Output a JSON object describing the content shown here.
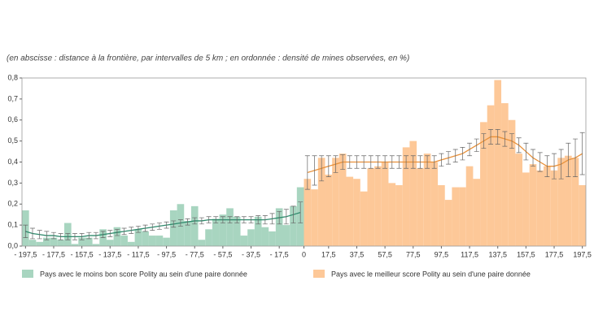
{
  "chart_data": {
    "type": "bar",
    "subtitle": "(en abscisse : distance à la frontière, par intervalles de 5 km ; en ordonnée : densité de mines observées, en %)",
    "xlim": [
      -200,
      200
    ],
    "ylim": [
      0,
      0.8
    ],
    "yticks": [
      {
        "value": 0,
        "label": "0,0"
      },
      {
        "value": 0.1,
        "label": "0,1"
      },
      {
        "value": 0.2,
        "label": "0,2"
      },
      {
        "value": 0.3,
        "label": "0,3"
      },
      {
        "value": 0.4,
        "label": "0,4"
      },
      {
        "value": 0.5,
        "label": "0,5"
      },
      {
        "value": 0.6,
        "label": "0,6"
      },
      {
        "value": 0.7,
        "label": "0,7"
      },
      {
        "value": 0.8,
        "label": "0,8"
      }
    ],
    "xticks": [
      {
        "value": -197.5,
        "label": "- 197,5"
      },
      {
        "value": -177.5,
        "label": "- 177,5"
      },
      {
        "value": -157.5,
        "label": "- 157,5"
      },
      {
        "value": -137.5,
        "label": "- 137,5"
      },
      {
        "value": -117.5,
        "label": "- 117,5"
      },
      {
        "value": -97.5,
        "label": "- 97,5"
      },
      {
        "value": -77.5,
        "label": "- 77,5"
      },
      {
        "value": -57.5,
        "label": "- 57,5"
      },
      {
        "value": -37.5,
        "label": "- 37,5"
      },
      {
        "value": -17.5,
        "label": "- 17,5"
      },
      0,
      {
        "value": 17.5,
        "label": "17,5"
      },
      {
        "value": 37.5,
        "label": "37,5"
      },
      {
        "value": 57.5,
        "label": "57,5"
      },
      {
        "value": 77.5,
        "label": "77,5"
      },
      {
        "value": 97.5,
        "label": "97,5"
      },
      {
        "value": 117.5,
        "label": "117,5"
      },
      {
        "value": 137.5,
        "label": "137,5"
      },
      {
        "value": 157.5,
        "label": "157,5"
      },
      {
        "value": 177.5,
        "label": "177,5"
      },
      {
        "value": 197.5,
        "label": "197,5"
      }
    ],
    "series": [
      {
        "name": "Pays avec le moins bon score Polity au sein d'une paire donnée",
        "color": "#a8d5c0",
        "line_color": "#2e8a6c",
        "x": [
          -197.5,
          -192.5,
          -187.5,
          -182.5,
          -177.5,
          -172.5,
          -167.5,
          -162.5,
          -157.5,
          -152.5,
          -147.5,
          -142.5,
          -137.5,
          -132.5,
          -127.5,
          -122.5,
          -117.5,
          -112.5,
          -107.5,
          -102.5,
          -97.5,
          -92.5,
          -87.5,
          -82.5,
          -77.5,
          -72.5,
          -67.5,
          -62.5,
          -57.5,
          -52.5,
          -47.5,
          -42.5,
          -37.5,
          -32.5,
          -27.5,
          -22.5,
          -17.5,
          -12.5,
          -7.5,
          -2.5
        ],
        "values": [
          0.17,
          0.03,
          0.02,
          0.04,
          0.04,
          0.03,
          0.11,
          0.01,
          0.04,
          0.04,
          0.01,
          0.08,
          0.03,
          0.09,
          0.05,
          0.02,
          0.08,
          0.07,
          0.05,
          0.05,
          0.04,
          0.17,
          0.2,
          0.12,
          0.19,
          0.03,
          0.08,
          0.13,
          0.15,
          0.18,
          0.14,
          0.05,
          0.08,
          0.14,
          0.09,
          0.07,
          0.18,
          0.1,
          0.19,
          0.28
        ],
        "fit": [
          0.07,
          0.06,
          0.055,
          0.05,
          0.05,
          0.045,
          0.045,
          0.045,
          0.045,
          0.05,
          0.05,
          0.055,
          0.06,
          0.065,
          0.07,
          0.075,
          0.08,
          0.085,
          0.09,
          0.095,
          0.1,
          0.105,
          0.11,
          0.115,
          0.12,
          0.12,
          0.125,
          0.125,
          0.125,
          0.125,
          0.125,
          0.125,
          0.125,
          0.125,
          0.125,
          0.13,
          0.135,
          0.14,
          0.15,
          0.16
        ],
        "fit_error": [
          0.03,
          0.025,
          0.02,
          0.02,
          0.015,
          0.015,
          0.015,
          0.015,
          0.015,
          0.015,
          0.015,
          0.015,
          0.015,
          0.015,
          0.015,
          0.015,
          0.015,
          0.015,
          0.015,
          0.015,
          0.015,
          0.015,
          0.015,
          0.015,
          0.015,
          0.015,
          0.015,
          0.015,
          0.015,
          0.015,
          0.015,
          0.015,
          0.015,
          0.02,
          0.02,
          0.025,
          0.03,
          0.035,
          0.04,
          0.05
        ]
      },
      {
        "name": "Pays avec le meilleur score Polity au sein d'une paire donnée",
        "color": "#fdc898",
        "line_color": "#e8913a",
        "x": [
          2.5,
          7.5,
          12.5,
          17.5,
          22.5,
          27.5,
          32.5,
          37.5,
          42.5,
          47.5,
          52.5,
          57.5,
          62.5,
          67.5,
          72.5,
          77.5,
          82.5,
          87.5,
          92.5,
          97.5,
          102.5,
          107.5,
          112.5,
          117.5,
          122.5,
          127.5,
          132.5,
          137.5,
          142.5,
          147.5,
          152.5,
          157.5,
          162.5,
          167.5,
          172.5,
          177.5,
          182.5,
          187.5,
          192.5,
          197.5
        ],
        "values": [
          0.32,
          0.27,
          0.42,
          0.34,
          0.42,
          0.44,
          0.33,
          0.32,
          0.26,
          0.37,
          0.38,
          0.4,
          0.3,
          0.29,
          0.47,
          0.5,
          0.37,
          0.44,
          0.4,
          0.29,
          0.22,
          0.28,
          0.28,
          0.38,
          0.32,
          0.59,
          0.67,
          0.79,
          0.68,
          0.6,
          0.44,
          0.35,
          0.39,
          0.36,
          0.38,
          0.36,
          0.42,
          0.43,
          0.42,
          0.29
        ],
        "fit": [
          0.35,
          0.36,
          0.37,
          0.38,
          0.39,
          0.4,
          0.4,
          0.4,
          0.4,
          0.4,
          0.4,
          0.4,
          0.4,
          0.4,
          0.4,
          0.4,
          0.4,
          0.4,
          0.4,
          0.41,
          0.42,
          0.43,
          0.44,
          0.46,
          0.48,
          0.5,
          0.52,
          0.52,
          0.51,
          0.5,
          0.48,
          0.45,
          0.42,
          0.4,
          0.38,
          0.38,
          0.39,
          0.41,
          0.42,
          0.44
        ],
        "fit_error": [
          0.08,
          0.07,
          0.06,
          0.05,
          0.04,
          0.035,
          0.03,
          0.03,
          0.03,
          0.03,
          0.03,
          0.03,
          0.03,
          0.03,
          0.03,
          0.03,
          0.03,
          0.03,
          0.03,
          0.03,
          0.03,
          0.03,
          0.03,
          0.03,
          0.03,
          0.035,
          0.035,
          0.035,
          0.035,
          0.035,
          0.035,
          0.04,
          0.04,
          0.045,
          0.05,
          0.06,
          0.07,
          0.08,
          0.09,
          0.1
        ]
      }
    ],
    "error_color": "#666"
  }
}
